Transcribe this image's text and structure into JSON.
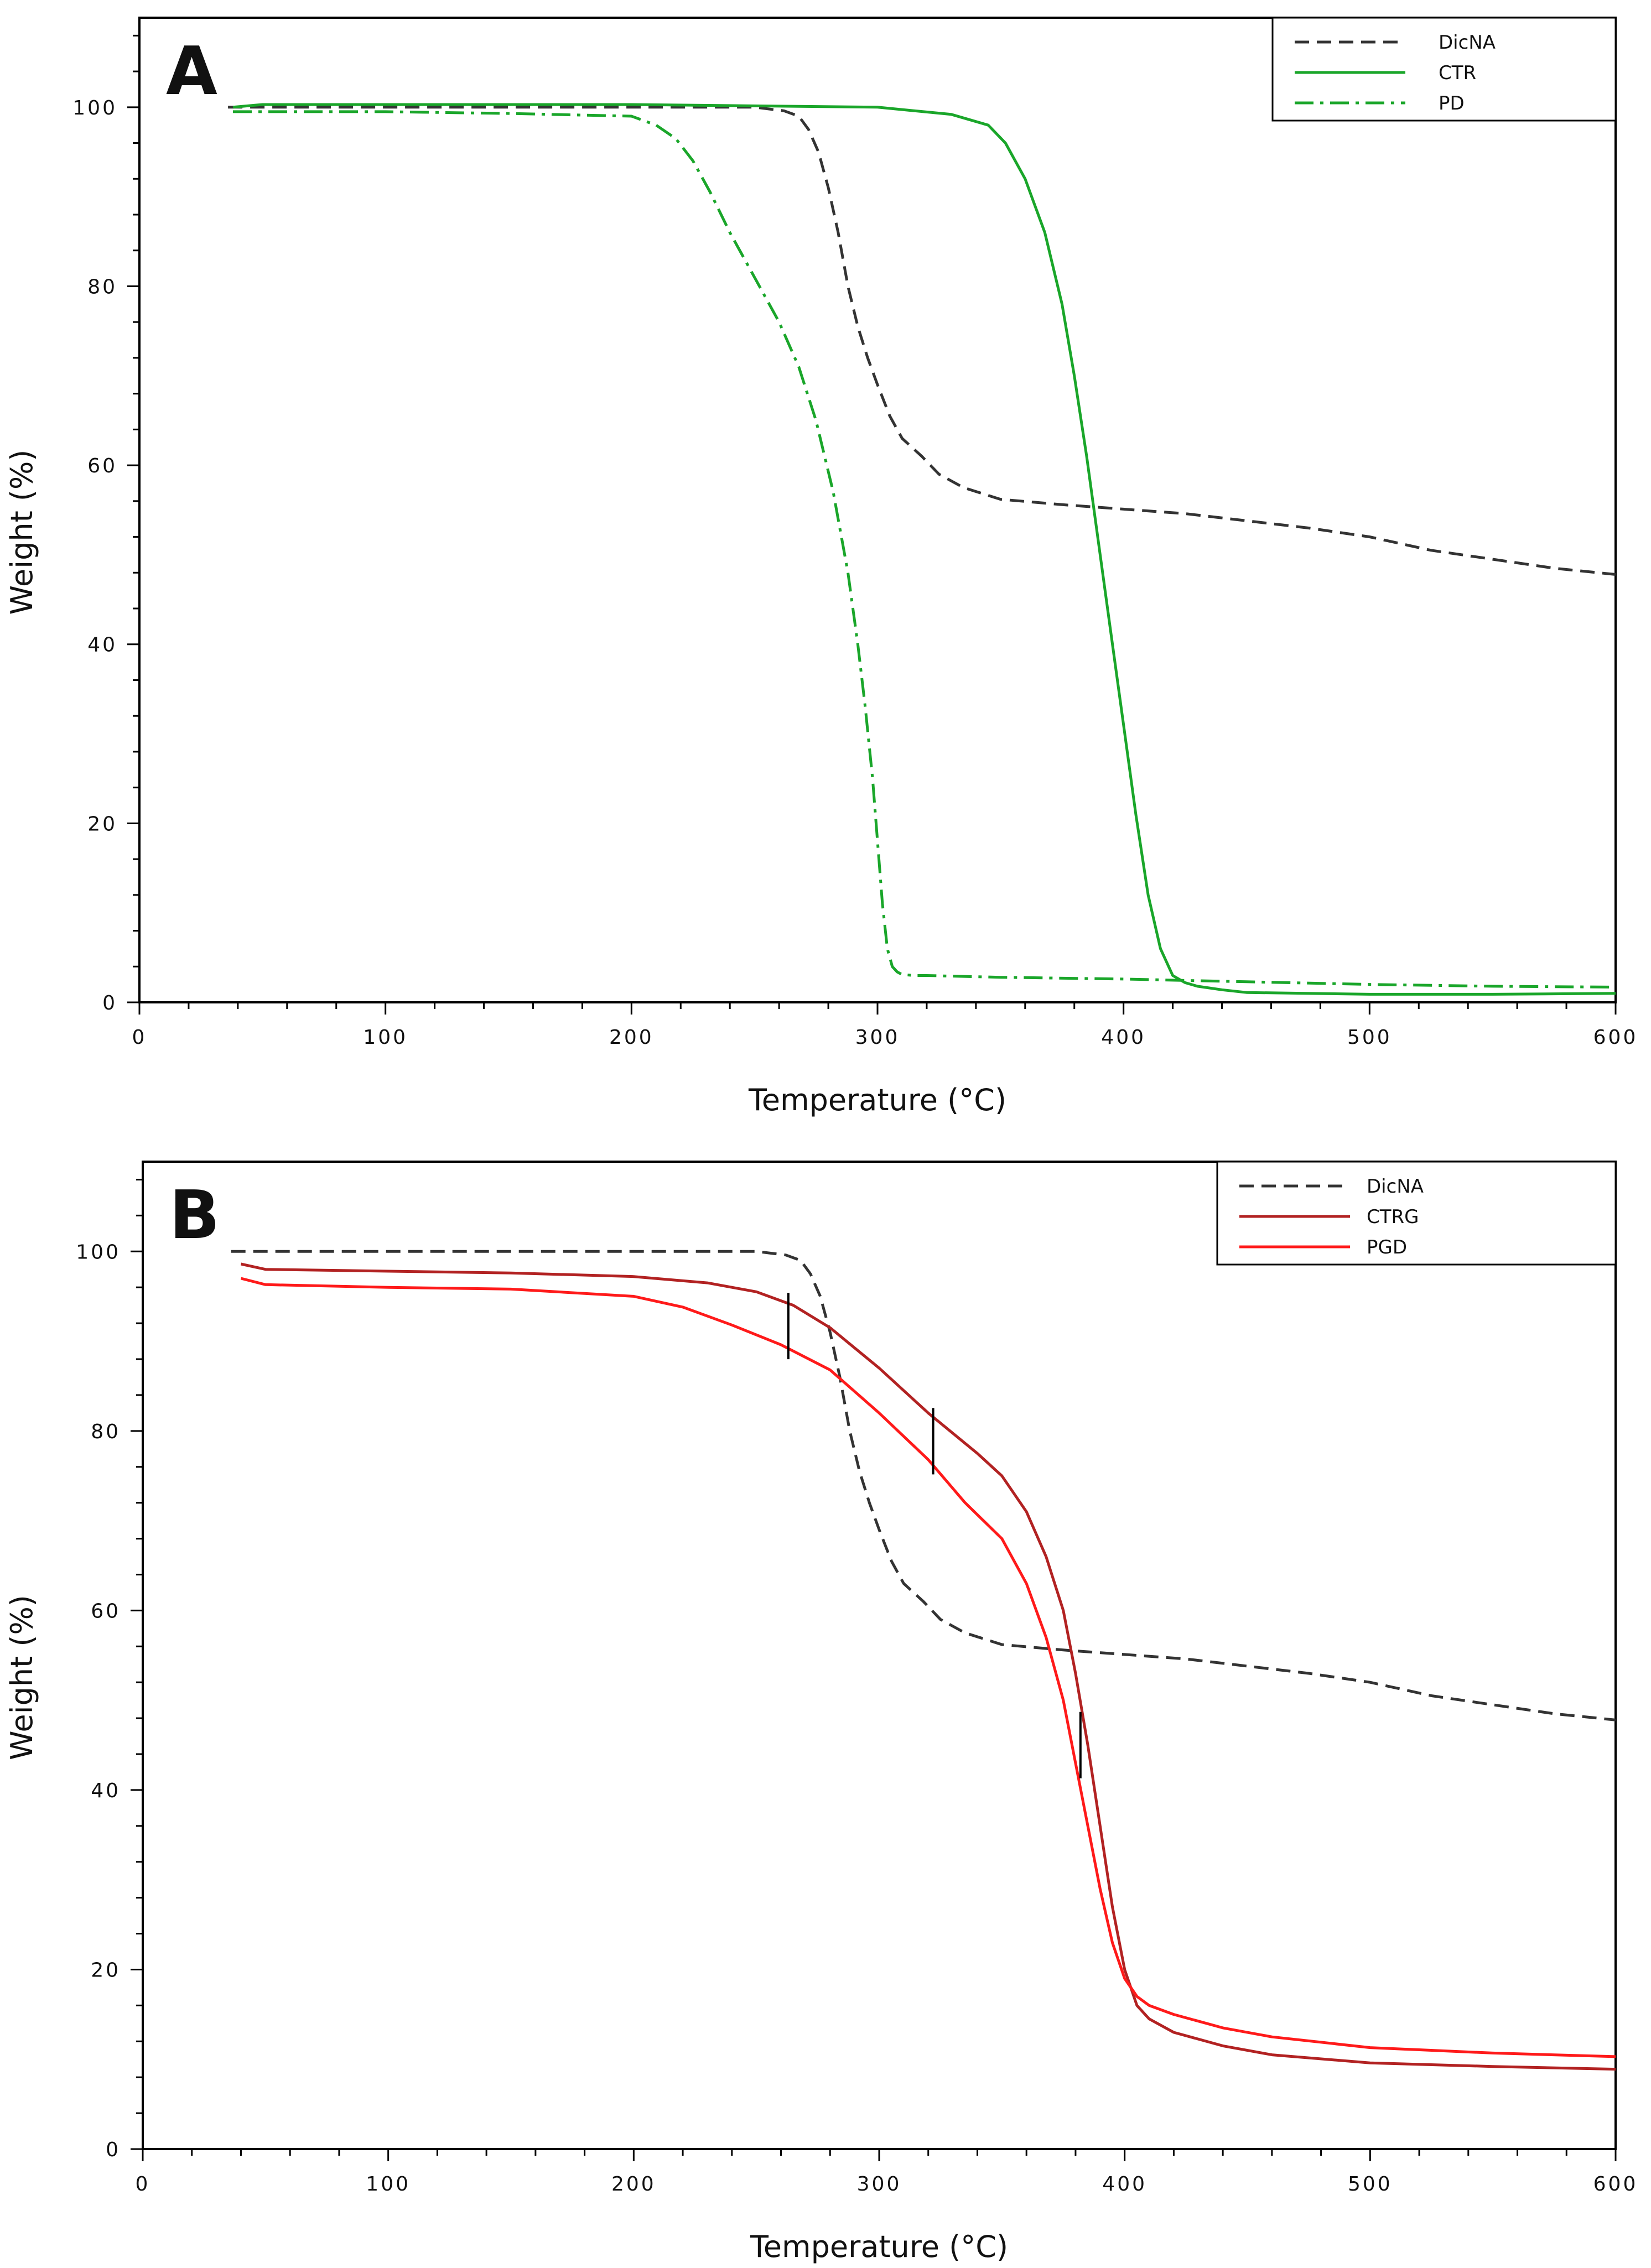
{
  "chart_data": [
    {
      "type": "line",
      "panel_label": "A",
      "xlabel": "Temperature (°C)",
      "ylabel": "Weight (%)",
      "xlim": [
        0,
        600
      ],
      "ylim": [
        0,
        110
      ],
      "xticks": [
        0,
        100,
        200,
        300,
        400,
        500,
        600
      ],
      "yticks": [
        0,
        20,
        40,
        60,
        80,
        100
      ],
      "legend_position": "top-right",
      "series": [
        {
          "name": "DicNA",
          "color": "#333333",
          "style": "dashed",
          "x": [
            36,
            100,
            200,
            250,
            262,
            268,
            272,
            276,
            280,
            284,
            288,
            292,
            296,
            300,
            305,
            310,
            318,
            325,
            335,
            350,
            375,
            400,
            425,
            450,
            475,
            500,
            525,
            550,
            575,
            600
          ],
          "y": [
            100,
            100,
            100,
            100,
            99.6,
            99,
            97.5,
            95,
            91,
            86,
            80,
            75.5,
            72,
            69,
            65.5,
            63,
            61,
            59,
            57.5,
            56.2,
            55.6,
            55.1,
            54.6,
            53.8,
            53,
            52,
            50.5,
            49.5,
            48.5,
            47.8
          ]
        },
        {
          "name": "CTR",
          "color": "#1aa62a",
          "style": "solid",
          "x": [
            38,
            50,
            100,
            200,
            300,
            330,
            345,
            352,
            360,
            368,
            375,
            380,
            385,
            390,
            395,
            400,
            405,
            410,
            415,
            420,
            425,
            430,
            440,
            450,
            500,
            550,
            600
          ],
          "y": [
            100,
            100.3,
            100.3,
            100.3,
            100,
            99.2,
            98,
            96,
            92,
            86,
            78,
            70,
            61,
            51,
            41,
            31,
            21,
            12,
            6,
            3,
            2.2,
            1.8,
            1.4,
            1.1,
            0.9,
            0.9,
            1
          ],
          "x_gap": [
            420,
            600
          ]
        },
        {
          "name": "PD",
          "color": "#1aa62a",
          "style": "dashdot",
          "x": [
            38,
            100,
            150,
            200,
            210,
            218,
            225,
            232,
            240,
            250,
            260,
            268,
            275,
            282,
            288,
            292,
            295,
            298,
            300,
            302,
            304,
            306,
            308,
            310,
            315,
            320,
            350,
            400,
            450,
            500,
            550,
            600
          ],
          "y": [
            99.5,
            99.5,
            99.3,
            99,
            98,
            96.5,
            94,
            90.5,
            86,
            81,
            76,
            71,
            65,
            57,
            48,
            40,
            33,
            25,
            18,
            11,
            6,
            4,
            3.4,
            3.1,
            3,
            3,
            2.8,
            2.6,
            2.3,
            2,
            1.8,
            1.7
          ]
        }
      ]
    },
    {
      "type": "line",
      "panel_label": "B",
      "xlabel": "Temperature (°C)",
      "ylabel": "Weight (%)",
      "xlim": [
        0,
        600
      ],
      "ylim": [
        0,
        110
      ],
      "xticks": [
        0,
        100,
        200,
        300,
        400,
        500,
        600
      ],
      "yticks": [
        0,
        20,
        40,
        60,
        80,
        100
      ],
      "legend_position": "top-right",
      "series": [
        {
          "name": "DicNA",
          "color": "#333333",
          "style": "dashed",
          "x": [
            36,
            100,
            200,
            250,
            262,
            268,
            272,
            276,
            280,
            284,
            288,
            292,
            296,
            300,
            305,
            310,
            318,
            325,
            335,
            350,
            375,
            400,
            425,
            450,
            475,
            500,
            525,
            550,
            575,
            600
          ],
          "y": [
            100,
            100,
            100,
            100,
            99.6,
            99,
            97.5,
            95,
            91,
            86,
            80,
            75.5,
            72,
            69,
            65.5,
            63,
            61,
            59,
            57.5,
            56.2,
            55.6,
            55.1,
            54.6,
            53.8,
            53,
            52,
            50.5,
            49.5,
            48.5,
            47.8
          ]
        },
        {
          "name": "CTRG",
          "color": "#b22222",
          "style": "solid",
          "x": [
            40,
            50,
            100,
            150,
            200,
            230,
            250,
            265,
            280,
            300,
            320,
            340,
            350,
            360,
            368,
            375,
            380,
            385,
            390,
            395,
            400,
            405,
            410,
            420,
            440,
            460,
            500,
            550,
            600
          ],
          "y": [
            98.6,
            98,
            97.8,
            97.6,
            97.2,
            96.5,
            95.5,
            94,
            91.5,
            87,
            82,
            77.5,
            75,
            71,
            66,
            60,
            53,
            45,
            36,
            27,
            20,
            16,
            14.5,
            13,
            11.5,
            10.5,
            9.6,
            9.2,
            8.9
          ]
        },
        {
          "name": "PGD",
          "color": "#ff1a1a",
          "style": "solid",
          "x": [
            40,
            50,
            100,
            150,
            200,
            220,
            240,
            260,
            280,
            300,
            320,
            335,
            350,
            360,
            368,
            375,
            380,
            385,
            390,
            395,
            400,
            405,
            410,
            420,
            440,
            460,
            500,
            550,
            600
          ],
          "y": [
            97,
            96.3,
            96,
            95.8,
            95,
            93.8,
            91.8,
            89.6,
            86.8,
            82,
            76.8,
            72,
            68,
            63,
            57,
            50,
            43,
            36,
            29,
            23,
            19,
            17,
            16,
            15,
            13.5,
            12.5,
            11.3,
            10.7,
            10.3
          ]
        }
      ],
      "tick_marks_x": [
        263,
        322,
        382
      ]
    }
  ]
}
